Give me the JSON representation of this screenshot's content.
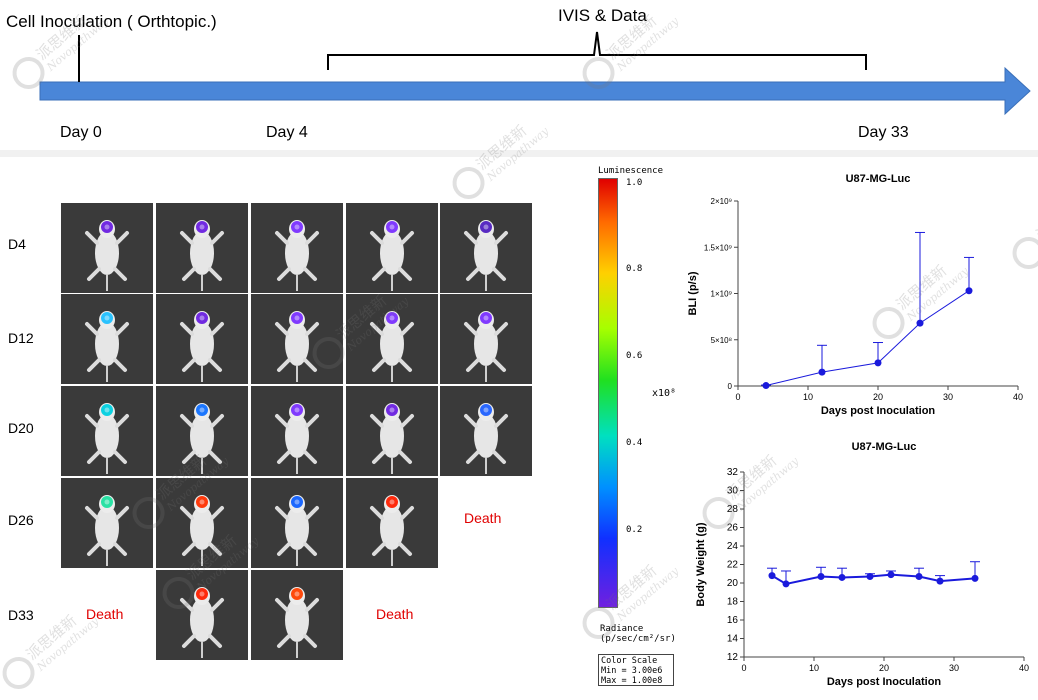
{
  "timeline": {
    "inoculation_label": "Cell Inoculation ( Orthtopic.)",
    "ivis_label": "IVIS & Data",
    "days": [
      "Day 0",
      "Day 4",
      "Day 33"
    ]
  },
  "imaging": {
    "rows": [
      "D4",
      "D12",
      "D20",
      "D26",
      "D33"
    ],
    "death_label": "Death"
  },
  "colorbar": {
    "title": "Luminescence",
    "ticks": [
      "1.0",
      "0.8",
      "0.6",
      "0.4",
      "0.2"
    ],
    "multiplier": "x10⁸",
    "radiance_line1": "Radiance",
    "radiance_line2": "(p/sec/cm²/sr)",
    "scale_line1": "Color Scale",
    "scale_line2": "Min = 3.00e6",
    "scale_line3": "Max = 1.00e8"
  },
  "watermark": {
    "cn": "派思维新",
    "en": "Novopathway"
  },
  "chart_data": [
    {
      "type": "line",
      "title": "U87-MG-Luc",
      "xlabel": "Days post Inoculation",
      "ylabel": "BLI (p/s)",
      "xlim": [
        0,
        40
      ],
      "ylim": [
        0,
        2000000000
      ],
      "xticks": [
        "0",
        "10",
        "20",
        "30",
        "40"
      ],
      "yticks": [
        "0",
        "5×10⁸",
        "1×10⁹",
        "1.5×10⁹",
        "2×10⁹"
      ],
      "x": [
        4,
        12,
        20,
        26,
        33
      ],
      "values": [
        5000000,
        150000000,
        250000000,
        680000000,
        1030000000
      ],
      "errors": [
        5000000,
        290000000,
        220000000,
        980000000,
        360000000
      ],
      "color": "#1a1adc"
    },
    {
      "type": "line",
      "title": "U87-MG-Luc",
      "xlabel": "Days post Inoculation",
      "ylabel": "Body Weight (g)",
      "xlim": [
        0,
        40
      ],
      "ylim": [
        12,
        32
      ],
      "xticks": [
        "0",
        "10",
        "20",
        "30",
        "40"
      ],
      "yticks": [
        "12",
        "14",
        "16",
        "18",
        "20",
        "22",
        "24",
        "26",
        "28",
        "30",
        "32"
      ],
      "x": [
        4,
        6,
        11,
        14,
        18,
        21,
        25,
        28,
        33
      ],
      "values": [
        20.8,
        19.9,
        20.7,
        20.6,
        20.7,
        20.9,
        20.7,
        20.2,
        20.5
      ],
      "errors": [
        0.8,
        1.4,
        1.0,
        1.0,
        0.3,
        0.4,
        0.9,
        0.6,
        1.8
      ],
      "color": "#1a1adc"
    }
  ]
}
